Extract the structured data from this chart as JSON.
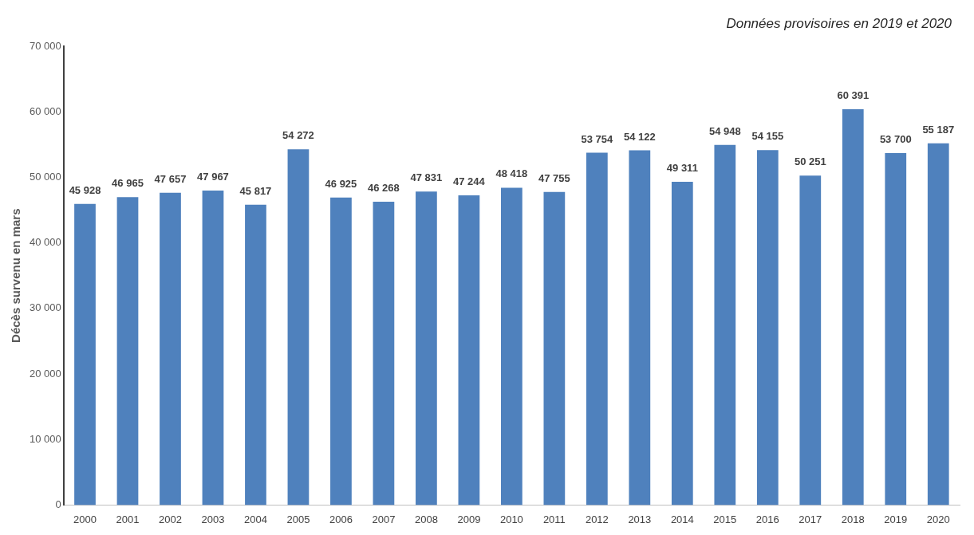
{
  "chart_data": {
    "type": "bar",
    "ylabel": "Décès survenu en mars",
    "categories": [
      "2000",
      "2001",
      "2002",
      "2003",
      "2004",
      "2005",
      "2006",
      "2007",
      "2008",
      "2009",
      "2010",
      "2011",
      "2012",
      "2013",
      "2014",
      "2015",
      "2016",
      "2017",
      "2018",
      "2019",
      "2020"
    ],
    "values": [
      45928,
      46965,
      47657,
      47967,
      45817,
      54272,
      46925,
      46268,
      47831,
      47244,
      48418,
      47755,
      53754,
      54122,
      49311,
      54948,
      54155,
      50251,
      60391,
      53700,
      55187
    ],
    "color": "#4f81bd",
    "ylim": [
      0,
      70000
    ],
    "yticks": [
      {
        "value": 0,
        "label": "0"
      },
      {
        "value": 10000,
        "label": "10 000"
      },
      {
        "value": 20000,
        "label": "20 000"
      },
      {
        "value": 30000,
        "label": "30 000"
      },
      {
        "value": 40000,
        "label": "40 000"
      },
      {
        "value": 50000,
        "label": "50 000"
      },
      {
        "value": 60000,
        "label": "60 000"
      },
      {
        "value": 70000,
        "label": "70 000"
      }
    ],
    "data_labels": true,
    "annotations": [
      "Données provisoires en 2019 et 2020"
    ]
  }
}
